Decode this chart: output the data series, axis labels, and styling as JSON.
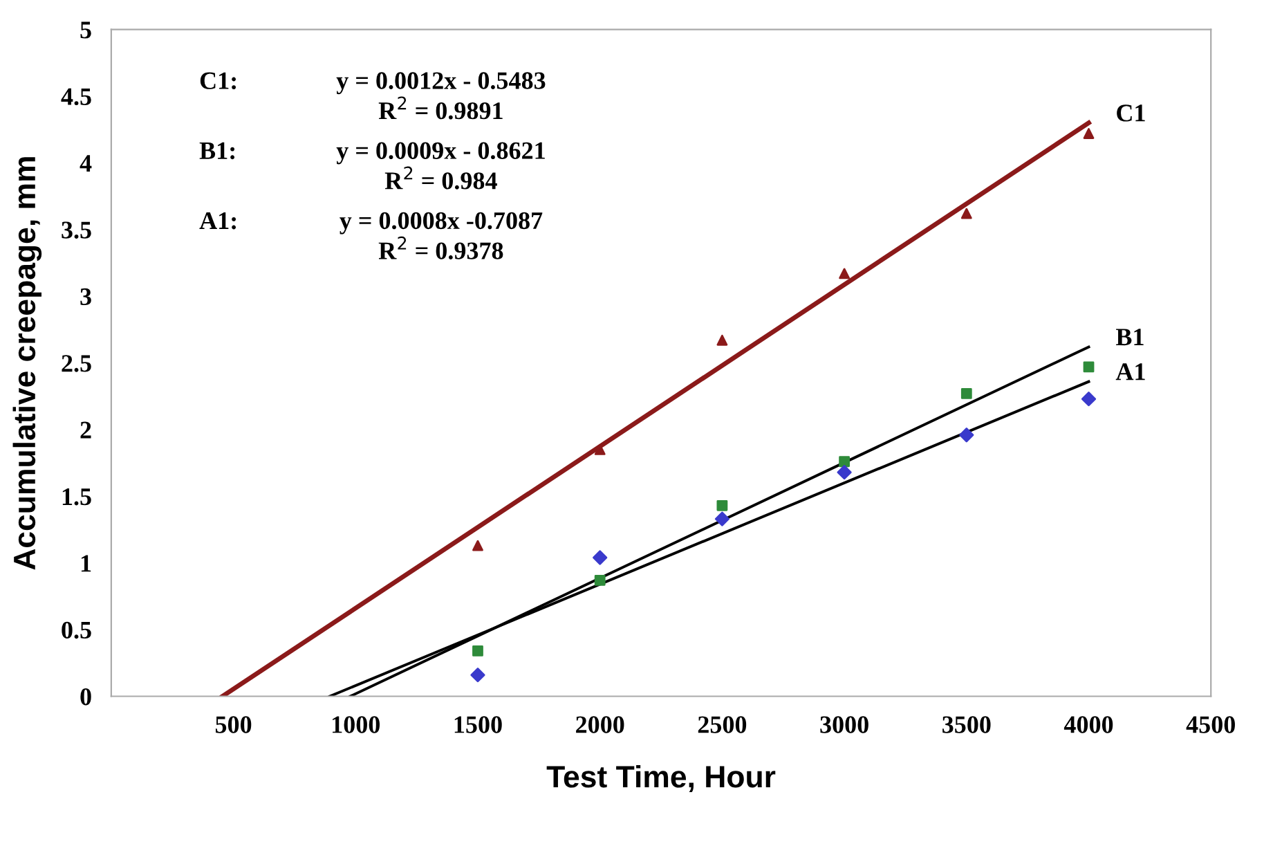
{
  "chart_data": {
    "type": "scatter",
    "xlabel": "Test Time, Hour",
    "ylabel": "Accumulative creepage, mm",
    "xlim": [
      0,
      4500
    ],
    "xticks": [
      500,
      1000,
      1500,
      2000,
      2500,
      3000,
      3500,
      4000,
      4500
    ],
    "ylim": [
      0,
      5
    ],
    "yticks": [
      0,
      0.5,
      1,
      1.5,
      2,
      2.5,
      3,
      3.5,
      4,
      4.5,
      5
    ],
    "grid": false,
    "legend": false,
    "series": [
      {
        "marker": "triangle",
        "color": "#8b1a1a",
        "x": [
          1500,
          2000,
          2500,
          3000,
          3500,
          4000
        ],
        "values": [
          1.13,
          1.85,
          2.67,
          3.17,
          3.62,
          4.22
        ]
      },
      {
        "marker": "square",
        "color": "#2e8b3a",
        "x": [
          1500,
          2000,
          2500,
          3000,
          3500,
          4000
        ],
        "values": [
          0.34,
          0.87,
          1.43,
          1.76,
          2.27,
          2.47
        ]
      },
      {
        "marker": "diamond",
        "color": "#3a3acc",
        "x": [
          1500,
          2000,
          2500,
          3000,
          3500,
          4000
        ],
        "values": [
          0.16,
          1.04,
          1.33,
          1.68,
          1.96,
          2.23
        ]
      },
      {
        "type": "line",
        "name": "C1",
        "color": "#8b1a1a",
        "x": [
          455,
          4000
        ],
        "values": [
          0,
          4.3
        ]
      },
      {
        "type": "line",
        "name": "B1",
        "color": "#000000",
        "x": [
          978,
          4000
        ],
        "values": [
          0,
          2.62
        ]
      },
      {
        "type": "line",
        "name": "A1",
        "color": "#000000",
        "x": [
          894,
          4000
        ],
        "values": [
          0,
          2.36
        ]
      }
    ],
    "annotations": [
      "C1:",
      "y = 0.0012x - 0.5483",
      "R$^{2}$ = 0.9891",
      "B1:",
      "y = 0.0009x - 0.8621",
      "R$^{2}$ = 0.984",
      "A1:",
      "y = 0.0008x -0.7087",
      "R$^{2}$ = 0.9378"
    ]
  }
}
